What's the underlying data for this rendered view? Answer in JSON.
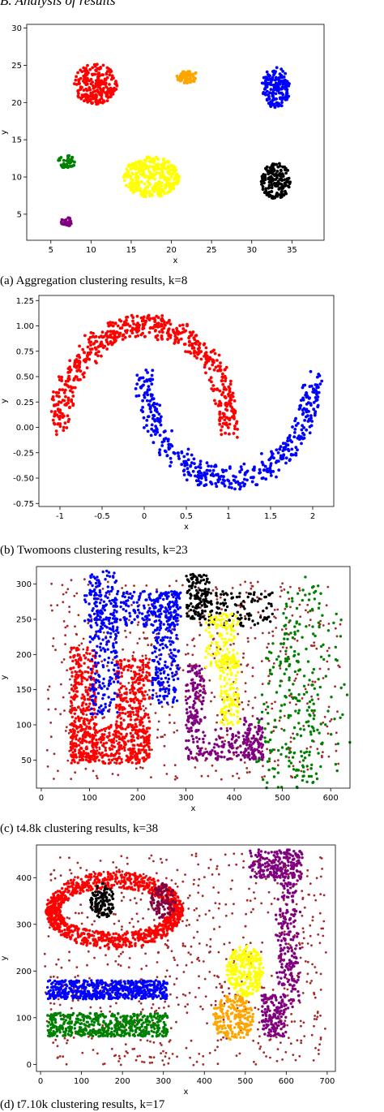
{
  "heading": "B. Analysis of results",
  "captions": {
    "a": "(a) Aggregation clustering results, k=8",
    "b": "(b) Twomoons clustering results, k=23",
    "c": "(c) t4.8k clustering results, k=38",
    "d": "(d) t7.10k clustering results, k=17"
  },
  "chart_data": [
    {
      "type": "scatter",
      "xlabel": "x",
      "ylabel": "y",
      "xlim": [
        2,
        39
      ],
      "ylim": [
        1.5,
        30.5
      ],
      "xticks": [
        5,
        10,
        15,
        20,
        25,
        30,
        35
      ],
      "yticks": [
        5,
        10,
        15,
        20,
        25,
        30
      ],
      "grid": false,
      "clusters": [
        {
          "color": "#ff0000",
          "shape": "blob",
          "center": [
            10.5,
            22.5
          ],
          "spread": [
            5.5,
            5.5
          ],
          "count": 230
        },
        {
          "color": "#ffa500",
          "shape": "blob",
          "center": [
            22.0,
            23.5
          ],
          "spread": [
            2.8,
            1.8
          ],
          "count": 65
        },
        {
          "color": "#0000ff",
          "shape": "blob",
          "center": [
            33.0,
            22.0
          ],
          "spread": [
            3.5,
            5.5
          ],
          "count": 190
        },
        {
          "color": "#008000",
          "shape": "blob",
          "center": [
            7.0,
            12.0
          ],
          "spread": [
            2.2,
            1.8
          ],
          "count": 40
        },
        {
          "color": "#ffff00",
          "shape": "blob",
          "center": [
            17.5,
            10.0
          ],
          "spread": [
            7.0,
            5.5
          ],
          "count": 340
        },
        {
          "color": "#000000",
          "shape": "blob",
          "center": [
            33.0,
            9.5
          ],
          "spread": [
            3.7,
            5.0
          ],
          "count": 160
        },
        {
          "color": "#800080",
          "shape": "blob",
          "center": [
            7.0,
            4.0
          ],
          "spread": [
            1.5,
            1.2
          ],
          "count": 30
        }
      ]
    },
    {
      "type": "scatter",
      "xlabel": "x",
      "ylabel": "y",
      "xlim": [
        -1.25,
        2.25
      ],
      "ylim": [
        -0.78,
        1.3
      ],
      "xticks": [
        -1.0,
        -0.5,
        0.0,
        0.5,
        1.0,
        1.5,
        2.0
      ],
      "yticks": [
        -0.75,
        -0.5,
        -0.25,
        0.0,
        0.25,
        0.5,
        0.75,
        1.0,
        1.25
      ],
      "grid": false,
      "clusters": [
        {
          "color": "#ff0000",
          "shape": "upper-moon",
          "center": [
            0.0,
            0.0
          ],
          "radius": 1.0,
          "noise": 0.08,
          "count": 600
        },
        {
          "color": "#0000ff",
          "shape": "lower-moon",
          "center": [
            1.0,
            0.5
          ],
          "radius": 1.0,
          "noise": 0.08,
          "count": 450
        }
      ]
    },
    {
      "type": "scatter",
      "xlabel": "x",
      "ylabel": "y",
      "xlim": [
        -10,
        640
      ],
      "ylim": [
        10,
        325
      ],
      "xticks": [
        0,
        100,
        200,
        300,
        400,
        500,
        600
      ],
      "yticks": [
        50,
        100,
        150,
        200,
        250,
        300
      ],
      "grid": false,
      "clusters": [
        {
          "color": "#a52a2a",
          "shape": "noise",
          "count": 600
        },
        {
          "color": "#ff0000",
          "shape": "rects",
          "count": 900
        },
        {
          "color": "#0000ff",
          "shape": "rects",
          "count": 700
        },
        {
          "color": "#000000",
          "shape": "rects",
          "count": 260
        },
        {
          "color": "#ffff00",
          "shape": "rects",
          "count": 260
        },
        {
          "color": "#800080",
          "shape": "rects",
          "count": 360
        },
        {
          "color": "#008000",
          "shape": "blob",
          "count": 500
        }
      ]
    },
    {
      "type": "scatter",
      "xlabel": "x",
      "ylabel": "y",
      "xlim": [
        -10,
        720
      ],
      "ylim": [
        -15,
        470
      ],
      "xticks": [
        0,
        100,
        200,
        300,
        400,
        500,
        600,
        700
      ],
      "yticks": [
        0,
        100,
        200,
        300,
        400
      ],
      "grid": false,
      "clusters": [
        {
          "color": "#a52a2a",
          "shape": "noise",
          "count": 700
        },
        {
          "color": "#ff0000",
          "shape": "ring",
          "count": 1100
        },
        {
          "color": "#000000",
          "shape": "blob",
          "count": 120
        },
        {
          "color": "#800040",
          "shape": "blob",
          "count": 110
        },
        {
          "color": "#800080",
          "shape": "hook",
          "count": 600
        },
        {
          "color": "#0000ff",
          "shape": "rects",
          "count": 560
        },
        {
          "color": "#008000",
          "shape": "rects",
          "count": 520
        },
        {
          "color": "#ffff00",
          "shape": "blob",
          "count": 280
        },
        {
          "color": "#ffa500",
          "shape": "blob",
          "count": 220
        }
      ]
    }
  ]
}
